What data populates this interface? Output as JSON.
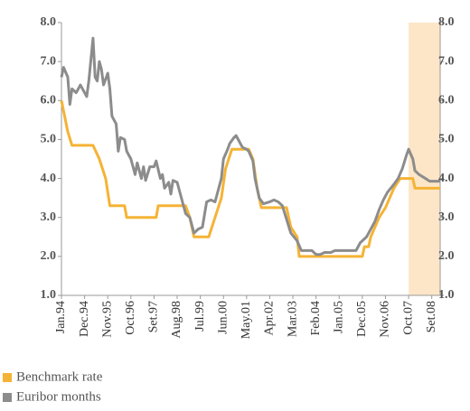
{
  "chart_data": {
    "type": "line",
    "xlim": [
      0,
      180
    ],
    "ylim": [
      1,
      8
    ],
    "xticks": [
      {
        "value": 0,
        "label": "Jan.94"
      },
      {
        "value": 11,
        "label": "Dec.94"
      },
      {
        "value": 22,
        "label": "Nov.95"
      },
      {
        "value": 33,
        "label": "Oct.96"
      },
      {
        "value": 44,
        "label": "Set.97"
      },
      {
        "value": 55,
        "label": "Aug.98"
      },
      {
        "value": 66,
        "label": "Jul.99"
      },
      {
        "value": 77,
        "label": "Jun.00"
      },
      {
        "value": 88,
        "label": "May.01"
      },
      {
        "value": 99,
        "label": "Apr.02"
      },
      {
        "value": 110,
        "label": "Mar.03"
      },
      {
        "value": 121,
        "label": "Feb.04"
      },
      {
        "value": 132,
        "label": "Jan.05"
      },
      {
        "value": 143,
        "label": "Dec.05"
      },
      {
        "value": 154,
        "label": "Nov.06"
      },
      {
        "value": 165,
        "label": "Oct.07"
      },
      {
        "value": 176,
        "label": "Set.08"
      }
    ],
    "yticks": [
      {
        "value": 1,
        "label": "1.0"
      },
      {
        "value": 2,
        "label": "2.0"
      },
      {
        "value": 3,
        "label": "3.0"
      },
      {
        "value": 4,
        "label": "4.0"
      },
      {
        "value": 5,
        "label": "5.0"
      },
      {
        "value": 6,
        "label": "6.0"
      },
      {
        "value": 7,
        "label": "7.0"
      },
      {
        "value": 8,
        "label": "8.0"
      }
    ],
    "shaded_xrange": [
      165,
      180
    ],
    "shade_color": "#fde6c8",
    "series": [
      {
        "name": "Benchmark rate",
        "color": "#f5b335",
        "x": [
          0,
          3,
          5,
          15,
          18,
          21,
          23,
          30,
          31,
          45,
          46,
          59,
          61,
          63,
          70,
          73,
          76,
          78,
          81,
          89,
          91,
          93,
          95,
          107,
          109,
          112,
          113,
          143,
          144,
          146,
          147,
          149,
          151,
          154,
          156,
          158,
          161,
          167,
          168,
          180
        ],
        "values": [
          6.0,
          5.2,
          4.85,
          4.85,
          4.5,
          4.0,
          3.3,
          3.3,
          3.0,
          3.0,
          3.3,
          3.3,
          3.0,
          2.5,
          2.5,
          3.0,
          3.5,
          4.25,
          4.75,
          4.75,
          4.5,
          3.75,
          3.25,
          3.25,
          2.75,
          2.5,
          2.0,
          2.0,
          2.25,
          2.25,
          2.5,
          2.75,
          3.0,
          3.25,
          3.5,
          3.75,
          4.0,
          4.0,
          3.75,
          3.75
        ]
      },
      {
        "name": "Euribor months",
        "color": "#8c8c8c",
        "x": [
          0,
          1,
          3,
          4,
          5,
          7,
          9,
          10,
          12,
          13,
          15,
          16,
          17,
          18,
          19,
          20,
          22,
          23,
          24,
          25,
          26,
          27,
          28,
          30,
          31,
          33,
          35,
          36,
          38,
          39,
          40,
          42,
          44,
          45,
          47,
          48,
          49,
          51,
          52,
          53,
          55,
          56,
          57,
          59,
          61,
          63,
          65,
          67,
          69,
          71,
          73,
          74,
          76,
          77,
          79,
          80,
          82,
          83,
          85,
          86,
          88,
          89,
          91,
          92,
          94,
          96,
          99,
          101,
          103,
          105,
          107,
          109,
          112,
          114,
          117,
          119,
          121,
          123,
          125,
          128,
          130,
          134,
          137,
          140,
          142,
          145,
          147,
          149,
          151,
          153,
          155,
          158,
          160,
          162,
          164,
          165,
          167,
          168,
          170,
          173,
          175,
          180
        ],
        "values": [
          6.6,
          6.85,
          6.6,
          5.9,
          6.3,
          6.2,
          6.4,
          6.3,
          6.1,
          6.5,
          7.6,
          6.6,
          6.5,
          7.0,
          6.8,
          6.4,
          6.7,
          6.3,
          5.6,
          5.5,
          5.4,
          4.7,
          5.05,
          5.0,
          4.7,
          4.5,
          4.1,
          4.4,
          4.0,
          4.3,
          3.95,
          4.3,
          4.3,
          4.45,
          4.0,
          4.1,
          3.75,
          3.9,
          3.6,
          3.95,
          3.9,
          3.7,
          3.5,
          3.1,
          3.0,
          2.6,
          2.7,
          2.75,
          3.4,
          3.45,
          3.4,
          3.6,
          4.0,
          4.5,
          4.75,
          4.9,
          5.05,
          5.1,
          4.9,
          4.8,
          4.75,
          4.7,
          4.45,
          4.0,
          3.5,
          3.35,
          3.4,
          3.45,
          3.4,
          3.3,
          2.95,
          2.6,
          2.4,
          2.15,
          2.15,
          2.15,
          2.05,
          2.05,
          2.1,
          2.1,
          2.15,
          2.15,
          2.15,
          2.15,
          2.35,
          2.5,
          2.7,
          2.9,
          3.2,
          3.45,
          3.65,
          3.85,
          4.0,
          4.25,
          4.6,
          4.75,
          4.5,
          4.2,
          4.1,
          4.0,
          3.93,
          3.93
        ]
      }
    ]
  }
}
